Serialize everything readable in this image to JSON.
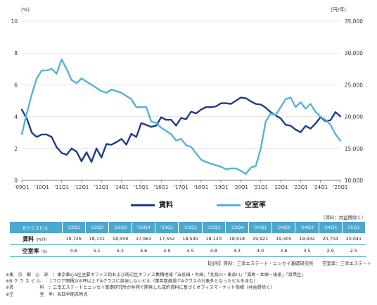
{
  "chart_data": {
    "type": "line",
    "left_unit": "(%)",
    "right_unit": "(円/坪)",
    "left_ticks": [
      "0",
      "2",
      "4",
      "6",
      "8",
      "10"
    ],
    "right_ticks": [
      "10,000",
      "15,000",
      "20,000",
      "25,000",
      "30,000",
      "35,000"
    ],
    "left_ylim": [
      0,
      10
    ],
    "right_ylim": [
      10000,
      35000
    ],
    "x_range": [
      2009,
      2025
    ],
    "x_ticks": [
      {
        "label": "'09Q1",
        "x": 2009
      },
      {
        "label": "'10Q1",
        "x": 2010
      },
      {
        "label": "'11Q1",
        "x": 2011
      },
      {
        "label": "'12Q1",
        "x": 2012
      },
      {
        "label": "'13Q1",
        "x": 2013
      },
      {
        "label": "'14Q1",
        "x": 2014
      },
      {
        "label": "'15Q1",
        "x": 2015
      },
      {
        "label": "'16Q1",
        "x": 2016
      },
      {
        "label": "'17Q1",
        "x": 2017
      },
      {
        "label": "'18Q1",
        "x": 2018
      },
      {
        "label": "'19Q1",
        "x": 2019
      },
      {
        "label": "'20Q1",
        "x": 2020
      },
      {
        "label": "'21Q1",
        "x": 2021
      },
      {
        "label": "'22Q1",
        "x": 2022
      },
      {
        "label": "'23Q1",
        "x": 2023
      },
      {
        "label": "'24Q1",
        "x": 2024
      },
      {
        "label": "'25Q1",
        "x": 2025
      }
    ],
    "series": [
      {
        "name": "賃料",
        "axis": "right",
        "color": "#1f3c88",
        "points": [
          [
            2009.0,
            21100
          ],
          [
            2009.25,
            19700
          ],
          [
            2009.5,
            17500
          ],
          [
            2009.75,
            16800
          ],
          [
            2010.0,
            17200
          ],
          [
            2010.25,
            17200
          ],
          [
            2010.5,
            16800
          ],
          [
            2010.75,
            15200
          ],
          [
            2011.0,
            14300
          ],
          [
            2011.25,
            14000
          ],
          [
            2011.5,
            15000
          ],
          [
            2011.75,
            14500
          ],
          [
            2012.0,
            13000
          ],
          [
            2012.25,
            14400
          ],
          [
            2012.5,
            12900
          ],
          [
            2012.75,
            15000
          ],
          [
            2013.0,
            13600
          ],
          [
            2013.25,
            15700
          ],
          [
            2013.5,
            15600
          ],
          [
            2013.75,
            16000
          ],
          [
            2014.0,
            16500
          ],
          [
            2014.25,
            15600
          ],
          [
            2014.5,
            17300
          ],
          [
            2014.75,
            16800
          ],
          [
            2015.0,
            19000
          ],
          [
            2015.25,
            18700
          ],
          [
            2015.5,
            18400
          ],
          [
            2015.75,
            18600
          ],
          [
            2016.0,
            19900
          ],
          [
            2016.25,
            19500
          ],
          [
            2016.5,
            19500
          ],
          [
            2016.75,
            18600
          ],
          [
            2017.0,
            19800
          ],
          [
            2017.25,
            19600
          ],
          [
            2017.5,
            20800
          ],
          [
            2017.75,
            20500
          ],
          [
            2018.0,
            21100
          ],
          [
            2018.25,
            21500
          ],
          [
            2018.5,
            21500
          ],
          [
            2018.75,
            21600
          ],
          [
            2019.0,
            22100
          ],
          [
            2019.25,
            22100
          ],
          [
            2019.5,
            22000
          ],
          [
            2019.75,
            22500
          ],
          [
            2020.0,
            23000
          ],
          [
            2020.25,
            22900
          ],
          [
            2020.5,
            22400
          ],
          [
            2020.75,
            22000
          ],
          [
            2021.0,
            21900
          ],
          [
            2021.25,
            21400
          ],
          [
            2021.5,
            20700
          ],
          [
            2021.75,
            20200
          ],
          [
            2022.0,
            19726
          ],
          [
            2022.25,
            18731
          ],
          [
            2022.5,
            18559
          ],
          [
            2022.75,
            17963
          ],
          [
            2023.0,
            17552
          ],
          [
            2023.25,
            18545
          ],
          [
            2023.5,
            18120
          ],
          [
            2023.75,
            18918
          ],
          [
            2024.0,
            19921
          ],
          [
            2024.25,
            19305
          ],
          [
            2024.5,
            19432
          ],
          [
            2024.75,
            20704
          ],
          [
            2025.0,
            20041
          ]
        ]
      },
      {
        "name": "空室率",
        "axis": "left",
        "color": "#52b4d6",
        "points": [
          [
            2009.0,
            2.9
          ],
          [
            2009.25,
            4.2
          ],
          [
            2009.5,
            5.4
          ],
          [
            2009.75,
            6.4
          ],
          [
            2010.0,
            6.9
          ],
          [
            2010.25,
            6.9
          ],
          [
            2010.5,
            7.0
          ],
          [
            2010.75,
            6.7
          ],
          [
            2011.0,
            7.6
          ],
          [
            2011.25,
            7.0
          ],
          [
            2011.5,
            6.3
          ],
          [
            2011.75,
            6.1
          ],
          [
            2012.0,
            6.4
          ],
          [
            2012.25,
            6.2
          ],
          [
            2012.5,
            6.0
          ],
          [
            2012.75,
            5.8
          ],
          [
            2013.0,
            5.6
          ],
          [
            2013.25,
            5.5
          ],
          [
            2013.5,
            5.7
          ],
          [
            2013.75,
            5.6
          ],
          [
            2014.0,
            5.5
          ],
          [
            2014.25,
            5.3
          ],
          [
            2014.5,
            5.1
          ],
          [
            2014.75,
            4.6
          ],
          [
            2015.0,
            4.6
          ],
          [
            2015.25,
            4.6
          ],
          [
            2015.5,
            3.7
          ],
          [
            2015.75,
            3.6
          ],
          [
            2016.0,
            3.3
          ],
          [
            2016.25,
            3.1
          ],
          [
            2016.5,
            2.9
          ],
          [
            2016.75,
            2.5
          ],
          [
            2017.0,
            2.6
          ],
          [
            2017.25,
            2.2
          ],
          [
            2017.5,
            2.1
          ],
          [
            2017.75,
            1.7
          ],
          [
            2018.0,
            1.3
          ],
          [
            2018.25,
            1.15
          ],
          [
            2018.5,
            1.05
          ],
          [
            2018.75,
            0.95
          ],
          [
            2019.0,
            0.85
          ],
          [
            2019.25,
            0.7
          ],
          [
            2019.5,
            0.75
          ],
          [
            2019.75,
            0.75
          ],
          [
            2020.0,
            0.6
          ],
          [
            2020.25,
            0.4
          ],
          [
            2020.5,
            0.8
          ],
          [
            2020.75,
            0.9
          ],
          [
            2021.0,
            2.0
          ],
          [
            2021.25,
            3.7
          ],
          [
            2021.5,
            4.2
          ],
          [
            2021.75,
            4.1
          ],
          [
            2022.0,
            4.6
          ],
          [
            2022.25,
            5.1
          ],
          [
            2022.5,
            5.2
          ],
          [
            2022.75,
            4.6
          ],
          [
            2023.0,
            4.9
          ],
          [
            2023.25,
            4.5
          ],
          [
            2023.5,
            4.8
          ],
          [
            2023.75,
            4.3
          ],
          [
            2024.0,
            4.0
          ],
          [
            2024.25,
            3.8
          ],
          [
            2024.5,
            3.5
          ],
          [
            2024.75,
            2.9
          ],
          [
            2025.0,
            2.5
          ]
        ]
      }
    ]
  },
  "legend": {
    "rent_label": "賃料",
    "vacancy_label": "空室率"
  },
  "table": {
    "unit_note": "（賃料：共益費除く）",
    "header_label": "Bクラスビル",
    "columns": [
      "'22Q1",
      "'22Q2",
      "'22Q3",
      "'22Q4",
      "'23Q1",
      "'23Q2",
      "'23Q3",
      "'23Q4",
      "'24Q1",
      "'24Q2",
      "'24Q3",
      "'24Q4",
      "25Q1"
    ],
    "rows": [
      {
        "label": "賃料",
        "sublabel": "（円/坪）",
        "values": [
          "19,726",
          "18,731",
          "18,559",
          "17,963",
          "17,552",
          "18,545",
          "18,120",
          "18,918",
          "19,921",
          "19,305",
          "19,432",
          "20,704",
          "20,041"
        ]
      },
      {
        "label": "空室率",
        "sublabel": "（%）",
        "values": [
          "4.6",
          "5.1",
          "5.2",
          "4.6",
          "4.9",
          "4.5",
          "4.8",
          "4.3",
          "4.0",
          "3.8",
          "3.5",
          "2.9",
          "2.5"
        ]
      }
    ]
  },
  "source": "【出所】賃料：三幸エステート・ニッセイ基礎研究所　　空室率：三幸エステート",
  "notes": [
    "※東　京　都　心　部　：東京都心5区主要オフィス街および周辺区オフィス集積地域「五反田・大崎」「北品川・東品川」「湯島・本郷・後楽」「目黒区」",
    "※B ク ラ ス ビ ル　：1フロア面積200坪以上でAクラスに該当しないビル（業年数経過でAクラスの対象外となったビルを含む）",
    "※賃　　　　　　料　：三幸エステートとニッセイ基礎研究所が共同で開発した成約賃料に基づくオフィスマーケット指標（共益費除く）",
    "※空　　　　　　室　率：各四半期末時点"
  ]
}
